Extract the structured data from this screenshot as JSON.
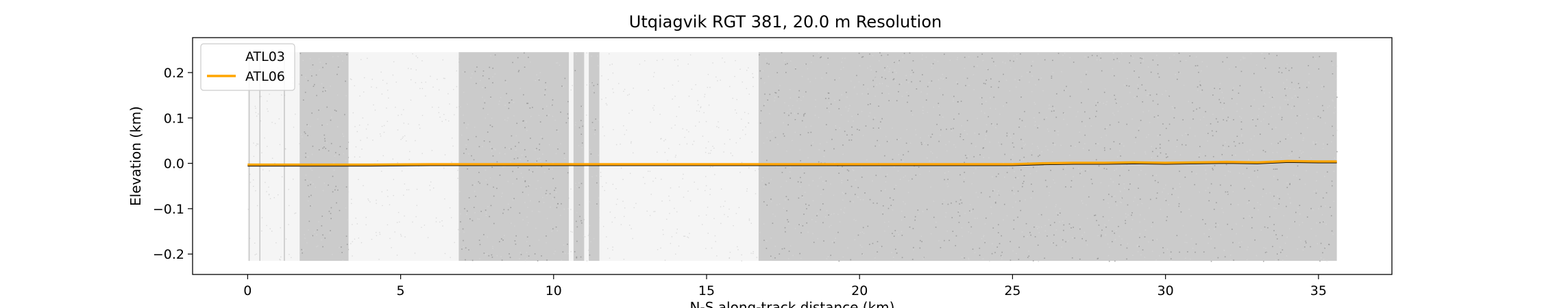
{
  "chart_data": {
    "type": "scatter",
    "title": "Utqiagvik RGT 381, 20.0 m Resolution",
    "xlabel": "N-S along-track distance (km)",
    "ylabel": "Elevation (km)",
    "xlim": [
      -1.8,
      37.4
    ],
    "ylim": [
      -0.245,
      0.277
    ],
    "x_ticks": [
      0,
      5,
      10,
      15,
      20,
      25,
      30,
      35
    ],
    "x_tick_labels": [
      "0",
      "5",
      "10",
      "15",
      "20",
      "25",
      "30",
      "35"
    ],
    "y_ticks": [
      -0.2,
      -0.1,
      0.0,
      0.1,
      0.2
    ],
    "y_tick_labels": [
      "−0.2",
      "−0.1",
      "0.0",
      "0.1",
      "0.2"
    ],
    "grid": false,
    "legend_position": "upper-left",
    "colors": {
      "atl03": "#8c8c8c",
      "atl06": "#ffa500",
      "ground": "#000000"
    },
    "series": [
      {
        "name": "ATL03",
        "kind": "photon-cloud",
        "y_range": [
          -0.215,
          0.245
        ],
        "segments": [
          {
            "x": [
              0.0,
              1.7
            ],
            "density": "low"
          },
          {
            "x": [
              1.7,
              3.3
            ],
            "density": "high"
          },
          {
            "x": [
              3.3,
              6.9
            ],
            "density": "low"
          },
          {
            "x": [
              6.9,
              10.5
            ],
            "density": "high"
          },
          {
            "x": [
              10.5,
              10.65
            ],
            "density": "low"
          },
          {
            "x": [
              10.65,
              11.0
            ],
            "density": "high"
          },
          {
            "x": [
              11.0,
              11.15
            ],
            "density": "low"
          },
          {
            "x": [
              11.15,
              11.5
            ],
            "density": "high"
          },
          {
            "x": [
              11.5,
              16.7
            ],
            "density": "low"
          },
          {
            "x": [
              16.7,
              35.6
            ],
            "density": "high"
          }
        ]
      },
      {
        "name": "ATL06",
        "kind": "line",
        "x": [
          0,
          2,
          4,
          6,
          8,
          10,
          12,
          14,
          16,
          18,
          20,
          22,
          24,
          25,
          26,
          27,
          28,
          29,
          30,
          31,
          32,
          33,
          34,
          35,
          35.6
        ],
        "y": [
          -0.003,
          -0.003,
          -0.003,
          -0.002,
          -0.002,
          -0.002,
          -0.002,
          -0.002,
          -0.002,
          -0.002,
          -0.002,
          -0.002,
          -0.002,
          -0.002,
          0.0,
          0.001,
          0.001,
          0.002,
          0.001,
          0.002,
          0.003,
          0.002,
          0.005,
          0.004,
          0.004
        ]
      }
    ]
  }
}
